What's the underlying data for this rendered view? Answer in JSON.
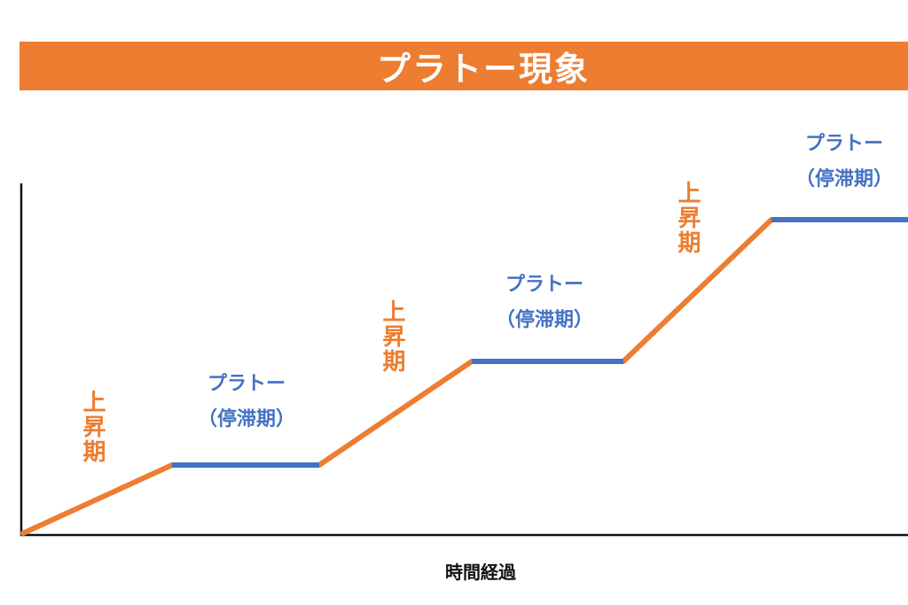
{
  "title": "プラトー現象",
  "x_axis_label": "時間経過",
  "colors": {
    "title_bar": "#ed7d31",
    "rise": "#ed7d31",
    "plateau": "#4472c4",
    "axis": "#111111"
  },
  "phases": [
    {
      "type": "rise",
      "label": "上昇期"
    },
    {
      "type": "plateau",
      "label": "プラトー",
      "sublabel": "（停滞期）"
    },
    {
      "type": "rise",
      "label": "上昇期"
    },
    {
      "type": "plateau",
      "label": "プラトー",
      "sublabel": "（停滞期）"
    },
    {
      "type": "rise",
      "label": "上昇期"
    },
    {
      "type": "plateau",
      "label": "プラトー",
      "sublabel": "（停滞期）"
    }
  ]
}
